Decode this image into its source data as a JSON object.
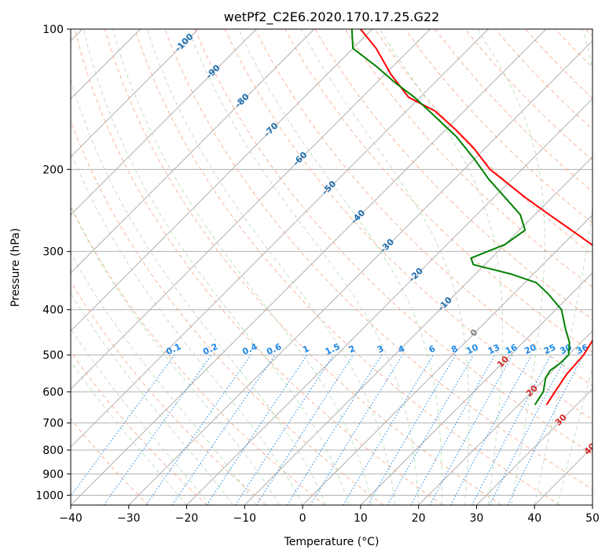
{
  "chart_data": {
    "type": "line",
    "title": "wetPf2_C2E6.2020.170.17.25.G22",
    "xlabel": "Temperature (°C)",
    "ylabel": "Pressure (hPa)",
    "xlim": [
      -40,
      50
    ],
    "ylim": [
      1050,
      100
    ],
    "y_scale": "log",
    "x_ticks": [
      -40,
      -30,
      -20,
      -10,
      0,
      10,
      20,
      30,
      40,
      50
    ],
    "x_tick_labels": [
      "−40",
      "−30",
      "−20",
      "−10",
      "0",
      "10",
      "20",
      "30",
      "40",
      "50"
    ],
    "y_ticks": [
      1000,
      900,
      800,
      700,
      600,
      500,
      400,
      300,
      200,
      100
    ],
    "y_tick_labels": [
      "1000",
      "900",
      "800",
      "700",
      "600",
      "500",
      "400",
      "300",
      "200",
      "100"
    ],
    "grid": true,
    "skew_t": true,
    "series": [
      {
        "role": "temperature",
        "color": "#ff0000",
        "points": [
          {
            "p": 640,
            "t": 24.8
          },
          {
            "p": 600,
            "t": 24.0
          },
          {
            "p": 550,
            "t": 23.0
          },
          {
            "p": 500,
            "t": 22.6
          },
          {
            "p": 460,
            "t": 21.5
          },
          {
            "p": 430,
            "t": 20.5
          },
          {
            "p": 400,
            "t": 18.5
          },
          {
            "p": 360,
            "t": 15.5
          },
          {
            "p": 330,
            "t": 13.0
          },
          {
            "p": 310,
            "t": 10.0
          },
          {
            "p": 290,
            "t": 5.0
          },
          {
            "p": 270,
            "t": -1.0
          },
          {
            "p": 250,
            "t": -7.5
          },
          {
            "p": 230,
            "t": -14.5
          },
          {
            "p": 200,
            "t": -25.5
          },
          {
            "p": 180,
            "t": -32.0
          },
          {
            "p": 165,
            "t": -38.0
          },
          {
            "p": 150,
            "t": -45.0
          },
          {
            "p": 140,
            "t": -52.0
          },
          {
            "p": 125,
            "t": -59.0
          },
          {
            "p": 110,
            "t": -66.0
          },
          {
            "p": 100,
            "t": -72.0
          }
        ]
      },
      {
        "role": "dewpoint",
        "color": "#008000",
        "points": [
          {
            "p": 640,
            "t": 22.8
          },
          {
            "p": 600,
            "t": 22.0
          },
          {
            "p": 560,
            "t": 20.0
          },
          {
            "p": 540,
            "t": 19.5
          },
          {
            "p": 520,
            "t": 20.0
          },
          {
            "p": 500,
            "t": 20.0
          },
          {
            "p": 470,
            "t": 18.0
          },
          {
            "p": 440,
            "t": 15.0
          },
          {
            "p": 400,
            "t": 11.0
          },
          {
            "p": 370,
            "t": 6.0
          },
          {
            "p": 350,
            "t": 2.0
          },
          {
            "p": 335,
            "t": -4.0
          },
          {
            "p": 320,
            "t": -12.0
          },
          {
            "p": 310,
            "t": -13.5
          },
          {
            "p": 290,
            "t": -10.0
          },
          {
            "p": 270,
            "t": -9.0
          },
          {
            "p": 250,
            "t": -12.5
          },
          {
            "p": 230,
            "t": -18.0
          },
          {
            "p": 210,
            "t": -24.0
          },
          {
            "p": 190,
            "t": -30.0
          },
          {
            "p": 170,
            "t": -37.0
          },
          {
            "p": 150,
            "t": -46.0
          },
          {
            "p": 140,
            "t": -51.0
          },
          {
            "p": 130,
            "t": -57.0
          },
          {
            "p": 120,
            "t": -63.0
          },
          {
            "p": 110,
            "t": -70.0
          },
          {
            "p": 100,
            "t": -73.5
          }
        ]
      }
    ],
    "isotherm_labels": [
      {
        "t": -100,
        "text": "-100"
      },
      {
        "t": -90,
        "text": "-90"
      },
      {
        "t": -80,
        "text": "-80"
      },
      {
        "t": -70,
        "text": "-70"
      },
      {
        "t": -60,
        "text": "-60"
      },
      {
        "t": -50,
        "text": "-50"
      },
      {
        "t": -40,
        "text": "-40"
      },
      {
        "t": -30,
        "text": "-30"
      },
      {
        "t": -20,
        "text": "-20"
      },
      {
        "t": -10,
        "text": "-10"
      },
      {
        "t": 0,
        "text": "0"
      },
      {
        "t": 10,
        "text": "10"
      },
      {
        "t": 20,
        "text": "20"
      },
      {
        "t": 30,
        "text": "30"
      },
      {
        "t": 40,
        "text": "40"
      }
    ],
    "mixing_ratio_labels": [
      "0.1",
      "0.2",
      "0.4",
      "0.6",
      "1",
      "1.5",
      "2",
      "3",
      "4",
      "6",
      "8",
      "10",
      "13",
      "16",
      "20",
      "25",
      "30",
      "36"
    ],
    "colors": {
      "isotherm": "#b0b0b0",
      "dry_adiabat": "#f4a582",
      "moist_adiabat": "#a6d4a6",
      "mixing_ratio": "#1e88e5",
      "isotherm_label_cold": "#1f6fb0",
      "isotherm_label_warm": "#d62728",
      "isotherm_label_zero": "#7f7f7f",
      "frame": "#000000"
    }
  }
}
